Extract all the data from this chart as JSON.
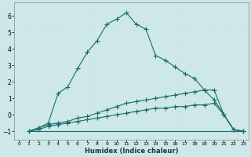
{
  "title": "",
  "xlabel": "Humidex (Indice chaleur)",
  "ylabel": "",
  "xlim": [
    -0.5,
    23.5
  ],
  "ylim": [
    -1.5,
    6.8
  ],
  "xticks": [
    0,
    1,
    2,
    3,
    4,
    5,
    6,
    7,
    8,
    9,
    10,
    11,
    12,
    13,
    14,
    15,
    16,
    17,
    18,
    19,
    20,
    21,
    22,
    23
  ],
  "yticks": [
    -1,
    0,
    1,
    2,
    3,
    4,
    5,
    6
  ],
  "background_color": "#cce8e8",
  "grid_color": "#b0d0d0",
  "line_color": "#1a6b6b",
  "line1_x": [
    1,
    2,
    3,
    4,
    5,
    6,
    7,
    8,
    9,
    10,
    11,
    12,
    13,
    14,
    15,
    16,
    17,
    18,
    19,
    20,
    21,
    22,
    23
  ],
  "line1_y": [
    -1.0,
    -0.8,
    -0.5,
    1.3,
    1.7,
    2.8,
    3.8,
    4.5,
    5.5,
    5.8,
    6.2,
    5.5,
    5.2,
    3.6,
    3.3,
    2.9,
    2.5,
    2.2,
    1.5,
    0.9,
    0.0,
    -0.9,
    -1.0
  ],
  "line2_x": [
    1,
    2,
    3,
    4,
    5,
    6,
    7,
    8,
    9,
    10,
    11,
    12,
    13,
    14,
    15,
    16,
    17,
    18,
    19,
    20,
    21,
    22,
    23
  ],
  "line2_y": [
    -1.0,
    -0.8,
    -0.6,
    -0.5,
    -0.4,
    -0.2,
    -0.1,
    0.1,
    0.3,
    0.5,
    0.7,
    0.8,
    0.9,
    1.0,
    1.1,
    1.2,
    1.3,
    1.4,
    1.5,
    1.5,
    0.0,
    -0.9,
    -1.0
  ],
  "line3_x": [
    1,
    2,
    3,
    4,
    5,
    6,
    7,
    8,
    9,
    10,
    11,
    12,
    13,
    14,
    15,
    16,
    17,
    18,
    19,
    20,
    21,
    22,
    23
  ],
  "line3_y": [
    -1.0,
    -0.9,
    -0.7,
    -0.6,
    -0.5,
    -0.4,
    -0.3,
    -0.2,
    -0.1,
    0.0,
    0.1,
    0.2,
    0.3,
    0.4,
    0.4,
    0.5,
    0.5,
    0.6,
    0.6,
    0.7,
    0.0,
    -0.9,
    -1.0
  ],
  "line4_x": [
    1,
    23
  ],
  "line4_y": [
    -1.0,
    -1.0
  ]
}
